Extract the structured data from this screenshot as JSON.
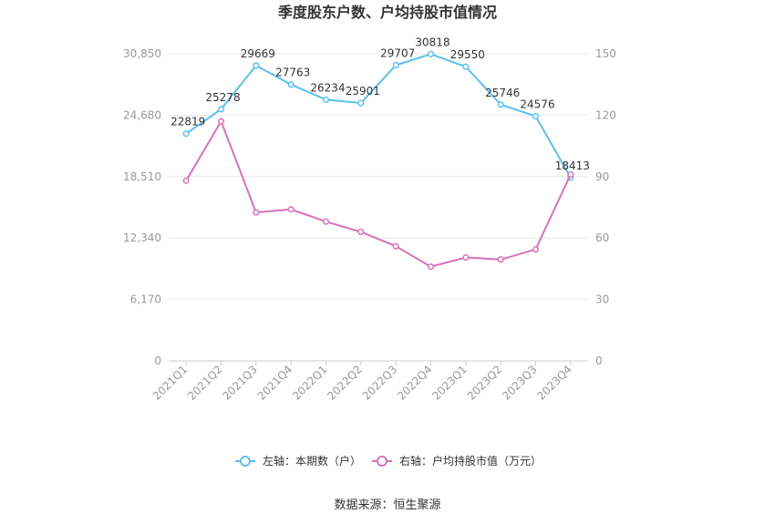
{
  "chart_data": {
    "type": "line",
    "title": "季度股东户数、户均持股市值情况",
    "categories": [
      "2021Q1",
      "2021Q2",
      "2021Q3",
      "2021Q4",
      "2022Q1",
      "2022Q2",
      "2022Q3",
      "2022Q4",
      "2023Q1",
      "2023Q2",
      "2023Q3",
      "2023Q4"
    ],
    "series": [
      {
        "name": "左轴：本期数（户）",
        "axis": "left",
        "color": "#5bc0ef",
        "values": [
          22819,
          25278,
          29669,
          27763,
          26234,
          25901,
          29707,
          30818,
          29550,
          25746,
          24576,
          18413
        ],
        "labels": [
          "22819",
          "25278",
          "29669",
          "27763",
          "26234",
          "25901",
          "29707",
          "30818",
          "29550",
          "25746",
          "24576",
          "18413"
        ]
      },
      {
        "name": "右轴：户均持股市值（万元）",
        "axis": "right",
        "color": "#d672b8",
        "values": [
          88,
          117,
          72.5,
          74,
          68,
          63,
          56,
          46,
          50.5,
          49.5,
          54.5,
          91
        ]
      }
    ],
    "y_left": {
      "ylim": [
        0,
        30850
      ],
      "ticks": [
        "0",
        "6,170",
        "12,340",
        "18,510",
        "24,680",
        "30,850"
      ],
      "tick_values": [
        0,
        6170,
        12340,
        18510,
        24680,
        30850
      ]
    },
    "y_right": {
      "ylim": [
        0,
        150
      ],
      "ticks": [
        "0",
        "30",
        "60",
        "90",
        "120",
        "150"
      ],
      "tick_values": [
        0,
        30,
        60,
        90,
        120,
        150
      ]
    },
    "grid": true,
    "legend_position": "bottom"
  },
  "source": "数据来源：恒生聚源"
}
